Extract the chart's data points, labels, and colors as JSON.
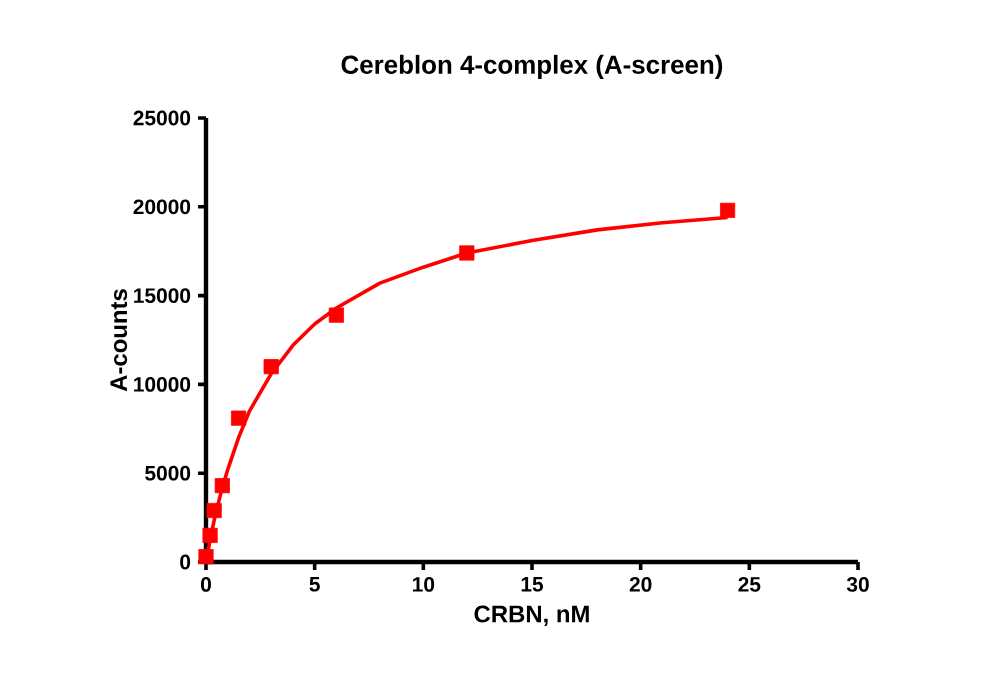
{
  "chart_data": {
    "type": "scatter",
    "title": "Cereblon 4-complex (A-screen)",
    "xlabel": "CRBN, nM",
    "ylabel": "A-counts",
    "xlim": [
      0,
      30
    ],
    "xticks": [
      0,
      5,
      10,
      15,
      20,
      25,
      30
    ],
    "ylim": [
      0,
      25000
    ],
    "yticks": [
      0,
      5000,
      10000,
      15000,
      20000,
      25000
    ],
    "marker": "square",
    "grid": false,
    "series": [
      {
        "color": "#ff0000",
        "x": [
          0,
          0.1875,
          0.375,
          0.75,
          1.5,
          3,
          6,
          12,
          24
        ],
        "values": [
          300,
          1500,
          2900,
          4300,
          8100,
          11000,
          13900,
          17400,
          19800
        ]
      },
      {
        "type": "line",
        "color": "#ff0000",
        "marker": "none",
        "x": [
          0,
          0.2,
          0.4,
          0.75,
          1,
          1.5,
          2,
          3,
          4,
          5,
          6,
          8,
          10,
          12,
          15,
          18,
          21,
          24
        ],
        "values": [
          0,
          1300,
          2500,
          4200,
          5200,
          7000,
          8500,
          10600,
          12200,
          13400,
          14300,
          15700,
          16600,
          17400,
          18100,
          18700,
          19100,
          19400
        ]
      }
    ]
  }
}
